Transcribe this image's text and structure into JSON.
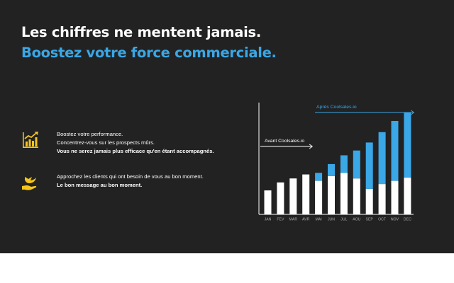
{
  "headline": {
    "line1": "Les chiffres ne mentent jamais.",
    "line2": "Boostez votre force commerciale."
  },
  "features": [
    {
      "icon": "growth-chart-icon",
      "lines": [
        "Boostez votre performance.",
        "Concentrez-vous sur les prospects mûrs.",
        "Vous ne serez jamais plus efficace qu'en étant accompagnés."
      ]
    },
    {
      "icon": "bird-hand-icon",
      "lines": [
        "Approchez les clients qui ont besoin de vous au bon moment.",
        "Le bon message au bon moment."
      ]
    }
  ],
  "colors": {
    "background": "#222222",
    "accent_blue": "#3aa7e6",
    "icon_yellow": "#f5c518",
    "before_bar": "#ffffff"
  },
  "chart_data": {
    "type": "bar",
    "stacked": true,
    "categories": [
      "JAN",
      "FEV",
      "MAR",
      "AVR",
      "MAI",
      "JUN",
      "JUL",
      "AOU",
      "SEP",
      "OCT",
      "NOV",
      "DEC"
    ],
    "series": [
      {
        "name": "Avant Coolsales.io",
        "color": "#ffffff",
        "values": [
          30,
          40,
          45,
          50,
          42,
          48,
          52,
          45,
          32,
          38,
          42,
          46
        ]
      },
      {
        "name": "Après Coolsales.io",
        "color": "#3aa7e6",
        "values": [
          0,
          0,
          0,
          0,
          10,
          15,
          22,
          35,
          58,
          65,
          75,
          82
        ]
      }
    ],
    "annotations": [
      {
        "text": "Avant Coolsales.io",
        "from": "JAN",
        "to": "AVR"
      },
      {
        "text": "Après Coolsales.io",
        "from": "MAI",
        "to": "DEC"
      }
    ],
    "ylim": [
      0,
      140
    ],
    "grid": false
  }
}
